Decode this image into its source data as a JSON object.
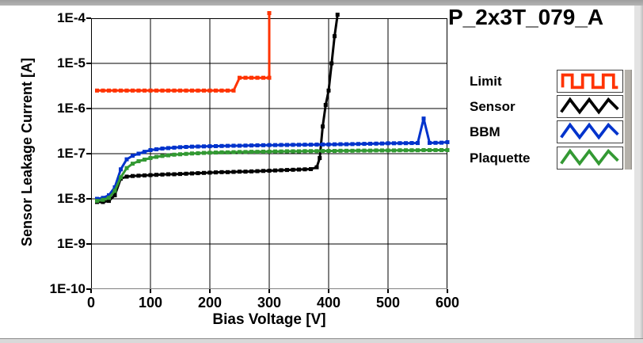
{
  "chart_data": {
    "type": "line",
    "title": "P_2x3T_079_A",
    "xlabel": "Bias Voltage [V]",
    "ylabel": "Sensor Leakage Current [A]",
    "xlim": [
      0,
      600
    ],
    "ylim": [
      1e-10,
      0.0001
    ],
    "y_scale": "log",
    "grid": true,
    "legend_position": "right",
    "x_ticks": [
      0,
      100,
      200,
      300,
      400,
      500,
      600
    ],
    "y_ticks": [
      {
        "value": 0.0001,
        "label": "1E-4"
      },
      {
        "value": 1e-05,
        "label": "1E-5"
      },
      {
        "value": 1e-06,
        "label": "1E-6"
      },
      {
        "value": 1e-07,
        "label": "1E-7"
      },
      {
        "value": 1e-08,
        "label": "1E-8"
      },
      {
        "value": 1e-09,
        "label": "1E-9"
      },
      {
        "value": 1e-10,
        "label": "1E-10"
      }
    ],
    "series": [
      {
        "name": "Limit",
        "color": "#ff3300",
        "points": [
          [
            10,
            2.5e-06
          ],
          [
            20,
            2.5e-06
          ],
          [
            30,
            2.5e-06
          ],
          [
            40,
            2.5e-06
          ],
          [
            50,
            2.5e-06
          ],
          [
            60,
            2.5e-06
          ],
          [
            70,
            2.5e-06
          ],
          [
            80,
            2.5e-06
          ],
          [
            90,
            2.5e-06
          ],
          [
            100,
            2.5e-06
          ],
          [
            110,
            2.5e-06
          ],
          [
            120,
            2.5e-06
          ],
          [
            130,
            2.5e-06
          ],
          [
            140,
            2.5e-06
          ],
          [
            150,
            2.5e-06
          ],
          [
            160,
            2.5e-06
          ],
          [
            170,
            2.5e-06
          ],
          [
            180,
            2.5e-06
          ],
          [
            190,
            2.5e-06
          ],
          [
            200,
            2.5e-06
          ],
          [
            210,
            2.5e-06
          ],
          [
            220,
            2.5e-06
          ],
          [
            230,
            2.5e-06
          ],
          [
            240,
            2.5e-06
          ],
          [
            250,
            4.8e-06
          ],
          [
            260,
            4.8e-06
          ],
          [
            270,
            4.8e-06
          ],
          [
            280,
            4.8e-06
          ],
          [
            290,
            4.8e-06
          ],
          [
            300,
            4.8e-06
          ],
          [
            300,
            0.00013
          ]
        ]
      },
      {
        "name": "Sensor",
        "color": "#000000",
        "points": [
          [
            10,
            8.5e-09
          ],
          [
            20,
            8.5e-09
          ],
          [
            30,
            9e-09
          ],
          [
            40,
            1.2e-08
          ],
          [
            50,
            2.8e-08
          ],
          [
            60,
            3.1e-08
          ],
          [
            70,
            3.2e-08
          ],
          [
            80,
            3.25e-08
          ],
          [
            90,
            3.3e-08
          ],
          [
            100,
            3.35e-08
          ],
          [
            110,
            3.4e-08
          ],
          [
            120,
            3.45e-08
          ],
          [
            130,
            3.5e-08
          ],
          [
            140,
            3.5e-08
          ],
          [
            150,
            3.55e-08
          ],
          [
            160,
            3.6e-08
          ],
          [
            170,
            3.65e-08
          ],
          [
            180,
            3.7e-08
          ],
          [
            190,
            3.75e-08
          ],
          [
            200,
            3.8e-08
          ],
          [
            210,
            3.85e-08
          ],
          [
            220,
            3.9e-08
          ],
          [
            230,
            3.9e-08
          ],
          [
            240,
            3.95e-08
          ],
          [
            250,
            4e-08
          ],
          [
            260,
            4e-08
          ],
          [
            270,
            4.05e-08
          ],
          [
            280,
            4.1e-08
          ],
          [
            290,
            4.15e-08
          ],
          [
            300,
            4.2e-08
          ],
          [
            310,
            4.25e-08
          ],
          [
            320,
            4.3e-08
          ],
          [
            330,
            4.35e-08
          ],
          [
            340,
            4.4e-08
          ],
          [
            350,
            4.45e-08
          ],
          [
            360,
            4.5e-08
          ],
          [
            370,
            4.55e-08
          ],
          [
            380,
            5e-08
          ],
          [
            385,
            8e-08
          ],
          [
            390,
            4e-07
          ],
          [
            395,
            1.2e-06
          ],
          [
            400,
            2.5e-06
          ],
          [
            405,
            1e-05
          ],
          [
            410,
            4e-05
          ],
          [
            415,
            0.00012
          ]
        ]
      },
      {
        "name": "BBM",
        "color": "#0033cc",
        "points": [
          [
            10,
            1e-08
          ],
          [
            20,
            1.05e-08
          ],
          [
            30,
            1.2e-08
          ],
          [
            40,
            1.8e-08
          ],
          [
            50,
            4.5e-08
          ],
          [
            60,
            7.5e-08
          ],
          [
            70,
            9e-08
          ],
          [
            80,
            1e-07
          ],
          [
            90,
            1.1e-07
          ],
          [
            100,
            1.2e-07
          ],
          [
            110,
            1.25e-07
          ],
          [
            120,
            1.3e-07
          ],
          [
            130,
            1.33e-07
          ],
          [
            140,
            1.36e-07
          ],
          [
            150,
            1.39e-07
          ],
          [
            160,
            1.41e-07
          ],
          [
            170,
            1.43e-07
          ],
          [
            180,
            1.44e-07
          ],
          [
            190,
            1.45e-07
          ],
          [
            200,
            1.46e-07
          ],
          [
            210,
            1.47e-07
          ],
          [
            220,
            1.48e-07
          ],
          [
            230,
            1.49e-07
          ],
          [
            240,
            1.5e-07
          ],
          [
            250,
            1.5e-07
          ],
          [
            260,
            1.51e-07
          ],
          [
            270,
            1.52e-07
          ],
          [
            280,
            1.53e-07
          ],
          [
            290,
            1.54e-07
          ],
          [
            300,
            1.55e-07
          ],
          [
            310,
            1.55e-07
          ],
          [
            320,
            1.56e-07
          ],
          [
            330,
            1.56e-07
          ],
          [
            340,
            1.57e-07
          ],
          [
            350,
            1.57e-07
          ],
          [
            360,
            1.58e-07
          ],
          [
            370,
            1.58e-07
          ],
          [
            380,
            1.59e-07
          ],
          [
            390,
            1.6e-07
          ],
          [
            400,
            1.6e-07
          ],
          [
            410,
            1.61e-07
          ],
          [
            420,
            1.62e-07
          ],
          [
            430,
            1.62e-07
          ],
          [
            440,
            1.63e-07
          ],
          [
            450,
            1.64e-07
          ],
          [
            460,
            1.65e-07
          ],
          [
            470,
            1.66e-07
          ],
          [
            480,
            1.67e-07
          ],
          [
            490,
            1.68e-07
          ],
          [
            500,
            1.7e-07
          ],
          [
            510,
            1.7e-07
          ],
          [
            520,
            1.71e-07
          ],
          [
            530,
            1.71e-07
          ],
          [
            540,
            1.72e-07
          ],
          [
            550,
            1.72e-07
          ],
          [
            560,
            6e-07
          ],
          [
            570,
            1.73e-07
          ],
          [
            580,
            1.74e-07
          ],
          [
            590,
            1.75e-07
          ],
          [
            600,
            1.8e-07
          ]
        ]
      },
      {
        "name": "Plaquette",
        "color": "#339933",
        "points": [
          [
            10,
            9e-09
          ],
          [
            20,
            9.5e-09
          ],
          [
            30,
            1.05e-08
          ],
          [
            40,
            1.5e-08
          ],
          [
            50,
            3e-08
          ],
          [
            60,
            4.8e-08
          ],
          [
            70,
            6e-08
          ],
          [
            80,
            6.8e-08
          ],
          [
            90,
            7.4e-08
          ],
          [
            100,
            8e-08
          ],
          [
            110,
            8.5e-08
          ],
          [
            120,
            8.9e-08
          ],
          [
            130,
            9.2e-08
          ],
          [
            140,
            9.5e-08
          ],
          [
            150,
            9.7e-08
          ],
          [
            160,
            9.9e-08
          ],
          [
            170,
            1.01e-07
          ],
          [
            180,
            1.02e-07
          ],
          [
            190,
            1.04e-07
          ],
          [
            200,
            1.05e-07
          ],
          [
            210,
            1.06e-07
          ],
          [
            220,
            1.07e-07
          ],
          [
            230,
            1.07e-07
          ],
          [
            240,
            1.08e-07
          ],
          [
            250,
            1.09e-07
          ],
          [
            260,
            1.09e-07
          ],
          [
            270,
            1.1e-07
          ],
          [
            280,
            1.1e-07
          ],
          [
            290,
            1.11e-07
          ],
          [
            300,
            1.11e-07
          ],
          [
            310,
            1.12e-07
          ],
          [
            320,
            1.12e-07
          ],
          [
            330,
            1.13e-07
          ],
          [
            340,
            1.13e-07
          ],
          [
            350,
            1.13e-07
          ],
          [
            360,
            1.14e-07
          ],
          [
            370,
            1.14e-07
          ],
          [
            380,
            1.14e-07
          ],
          [
            390,
            1.15e-07
          ],
          [
            400,
            1.15e-07
          ],
          [
            410,
            1.15e-07
          ],
          [
            420,
            1.16e-07
          ],
          [
            430,
            1.16e-07
          ],
          [
            440,
            1.16e-07
          ],
          [
            450,
            1.17e-07
          ],
          [
            460,
            1.17e-07
          ],
          [
            470,
            1.17e-07
          ],
          [
            480,
            1.18e-07
          ],
          [
            490,
            1.18e-07
          ],
          [
            500,
            1.18e-07
          ],
          [
            510,
            1.18e-07
          ],
          [
            520,
            1.19e-07
          ],
          [
            530,
            1.19e-07
          ],
          [
            540,
            1.19e-07
          ],
          [
            550,
            1.19e-07
          ],
          [
            560,
            1.2e-07
          ],
          [
            570,
            1.2e-07
          ],
          [
            580,
            1.2e-07
          ],
          [
            590,
            1.2e-07
          ],
          [
            600,
            1.2e-07
          ]
        ]
      }
    ]
  },
  "legend": {
    "items": [
      {
        "label": "Limit",
        "color": "#ff3300",
        "icon": "square-wave-icon"
      },
      {
        "label": "Sensor",
        "color": "#000000",
        "icon": "triangle-wave-icon"
      },
      {
        "label": "BBM",
        "color": "#0033cc",
        "icon": "triangle-wave-icon"
      },
      {
        "label": "Plaquette",
        "color": "#339933",
        "icon": "triangle-wave-icon"
      }
    ]
  }
}
